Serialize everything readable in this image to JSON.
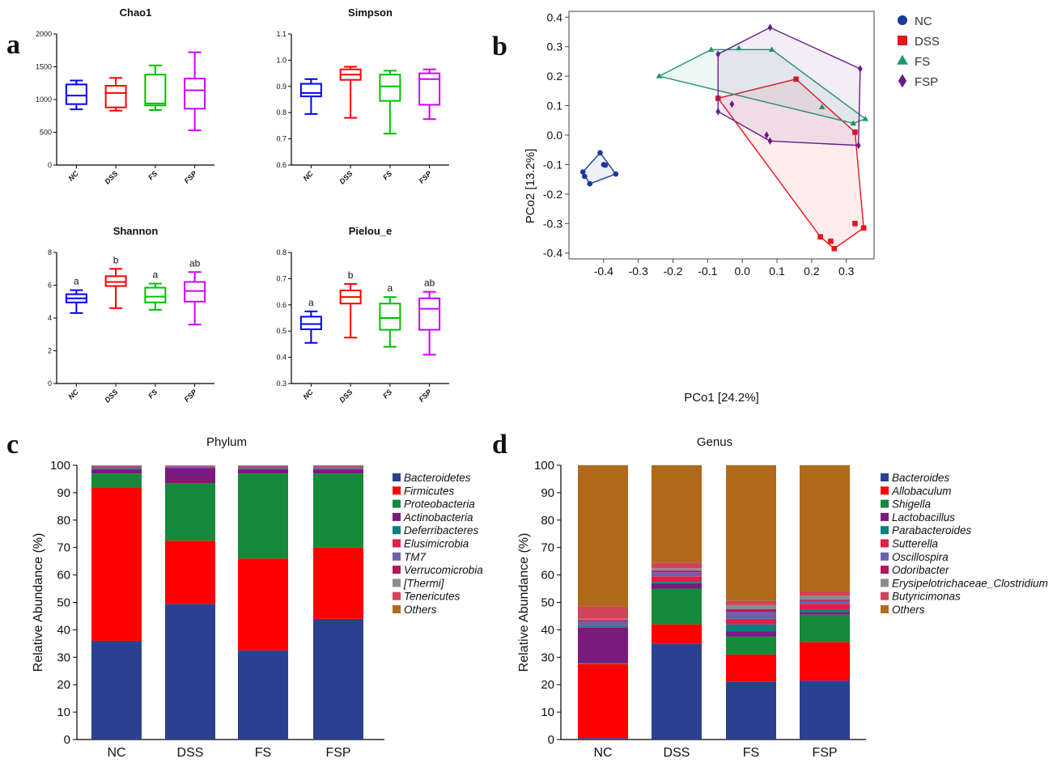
{
  "panel_letters": {
    "a": "a",
    "b": "b",
    "c": "c",
    "d": "d"
  },
  "group_colors": {
    "NC": "#0000ff",
    "DSS": "#ff0000",
    "FS": "#00c000",
    "FSP": "#cc00ff"
  },
  "chart_data": [
    {
      "id": "chao1",
      "type": "box",
      "title": "Chao1",
      "categories": [
        "NC",
        "DSS",
        "FS",
        "FSP"
      ],
      "ylim": [
        0,
        2000
      ],
      "yticks": [
        0,
        500,
        1000,
        1500,
        2000
      ],
      "boxes": [
        {
          "min": 850,
          "q1": 930,
          "median": 1060,
          "q3": 1230,
          "max": 1290
        },
        {
          "min": 830,
          "q1": 880,
          "median": 1100,
          "q3": 1210,
          "max": 1330
        },
        {
          "min": 840,
          "q1": 910,
          "median": 940,
          "q3": 1380,
          "max": 1520
        },
        {
          "min": 530,
          "q1": 860,
          "median": 1140,
          "q3": 1320,
          "max": 1720
        }
      ],
      "sig_labels": []
    },
    {
      "id": "simpson",
      "type": "box",
      "title": "Simpson",
      "categories": [
        "NC",
        "DSS",
        "FS",
        "FSP"
      ],
      "ylim": [
        0.6,
        1.1
      ],
      "yticks": [
        0.6,
        0.7,
        0.8,
        0.9,
        1.0,
        1.1
      ],
      "ytick_labels": [
        "0.6",
        "0.7",
        "0.8",
        "0.9",
        "1.0",
        "1.1"
      ],
      "boxes": [
        {
          "min": 0.795,
          "q1": 0.862,
          "median": 0.875,
          "q3": 0.91,
          "max": 0.928
        },
        {
          "min": 0.78,
          "q1": 0.925,
          "median": 0.945,
          "q3": 0.965,
          "max": 0.975
        },
        {
          "min": 0.72,
          "q1": 0.845,
          "median": 0.9,
          "q3": 0.945,
          "max": 0.96
        },
        {
          "min": 0.775,
          "q1": 0.83,
          "median": 0.928,
          "q3": 0.95,
          "max": 0.965
        }
      ],
      "sig_labels": []
    },
    {
      "id": "shannon",
      "type": "box",
      "title": "Shannon",
      "categories": [
        "NC",
        "DSS",
        "FS",
        "FSP"
      ],
      "ylim": [
        0,
        8
      ],
      "yticks": [
        0,
        2,
        4,
        6,
        8
      ],
      "boxes": [
        {
          "min": 4.3,
          "q1": 4.95,
          "median": 5.2,
          "q3": 5.45,
          "max": 5.7
        },
        {
          "min": 4.6,
          "q1": 5.95,
          "median": 6.2,
          "q3": 6.55,
          "max": 7.0
        },
        {
          "min": 4.5,
          "q1": 4.95,
          "median": 5.3,
          "q3": 5.85,
          "max": 6.1
        },
        {
          "min": 3.6,
          "q1": 5.0,
          "median": 5.65,
          "q3": 6.2,
          "max": 6.8
        }
      ],
      "sig_labels": [
        "a",
        "b",
        "a",
        "ab"
      ]
    },
    {
      "id": "pielou",
      "type": "box",
      "title": "Pielou_e",
      "categories": [
        "NC",
        "DSS",
        "FS",
        "FSP"
      ],
      "ylim": [
        0.3,
        0.8
      ],
      "yticks": [
        0.3,
        0.4,
        0.5,
        0.6,
        0.7,
        0.8
      ],
      "ytick_labels": [
        "0.3",
        "0.4",
        "0.5",
        "0.6",
        "0.7",
        "0.8"
      ],
      "boxes": [
        {
          "min": 0.455,
          "q1": 0.507,
          "median": 0.527,
          "q3": 0.555,
          "max": 0.575
        },
        {
          "min": 0.475,
          "q1": 0.605,
          "median": 0.63,
          "q3": 0.655,
          "max": 0.68
        },
        {
          "min": 0.44,
          "q1": 0.505,
          "median": 0.55,
          "q3": 0.605,
          "max": 0.63
        },
        {
          "min": 0.41,
          "q1": 0.505,
          "median": 0.585,
          "q3": 0.625,
          "max": 0.65
        }
      ],
      "sig_labels": [
        "a",
        "b",
        "a",
        "ab"
      ]
    },
    {
      "id": "pcoa",
      "type": "scatter",
      "xlabel": "PCo1 [24.2%]",
      "ylabel": "PCo2 [13.2%]",
      "xlim": [
        -0.5,
        0.38
      ],
      "ylim": [
        -0.42,
        0.42
      ],
      "xticks": [
        -0.4,
        -0.3,
        -0.2,
        -0.1,
        0.0,
        0.1,
        0.2,
        0.3
      ],
      "xtick_labels": [
        "-0.4",
        "-0.3",
        "-0.2",
        "-0.1",
        "0.0",
        "0.1",
        "0.2",
        "0.3"
      ],
      "yticks": [
        -0.4,
        -0.3,
        -0.2,
        -0.1,
        0.0,
        0.1,
        0.2,
        0.3,
        0.4
      ],
      "ytick_labels": [
        "-0.4",
        "-0.3",
        "-0.2",
        "-0.1",
        "0.0",
        "0.1",
        "0.2",
        "0.3",
        "0.4"
      ],
      "legend": [
        "NC",
        "DSS",
        "FS",
        "FSP"
      ],
      "series": [
        {
          "name": "NC",
          "marker": "circle",
          "color": "#1a3a9c",
          "points": [
            [
              -0.41,
              -0.06
            ],
            [
              -0.46,
              -0.125
            ],
            [
              -0.455,
              -0.14
            ],
            [
              -0.44,
              -0.165
            ],
            [
              -0.4,
              -0.1
            ],
            [
              -0.395,
              -0.102
            ],
            [
              -0.365,
              -0.132
            ]
          ],
          "hull": [
            [
              -0.41,
              -0.06
            ],
            [
              -0.46,
              -0.125
            ],
            [
              -0.44,
              -0.165
            ],
            [
              -0.365,
              -0.132
            ]
          ]
        },
        {
          "name": "DSS",
          "marker": "square",
          "color": "#e8141b",
          "points": [
            [
              -0.07,
              0.125
            ],
            [
              0.155,
              0.19
            ],
            [
              0.325,
              0.01
            ],
            [
              0.325,
              -0.3
            ],
            [
              0.35,
              -0.315
            ],
            [
              0.225,
              -0.345
            ],
            [
              0.255,
              -0.36
            ],
            [
              0.265,
              -0.385
            ]
          ],
          "hull": [
            [
              -0.07,
              0.125
            ],
            [
              0.155,
              0.19
            ],
            [
              0.325,
              0.01
            ],
            [
              0.35,
              -0.315
            ],
            [
              0.265,
              -0.385
            ],
            [
              0.225,
              -0.345
            ]
          ]
        },
        {
          "name": "FS",
          "marker": "triangle",
          "color": "#1f9a6a",
          "points": [
            [
              -0.24,
              0.2
            ],
            [
              -0.09,
              0.29
            ],
            [
              -0.01,
              0.295
            ],
            [
              0.085,
              0.29
            ],
            [
              0.23,
              0.095
            ],
            [
              0.32,
              0.04
            ],
            [
              0.355,
              0.055
            ]
          ],
          "hull": [
            [
              -0.24,
              0.2
            ],
            [
              -0.09,
              0.29
            ],
            [
              0.085,
              0.29
            ],
            [
              0.355,
              0.055
            ],
            [
              0.32,
              0.04
            ]
          ]
        },
        {
          "name": "FSP",
          "marker": "diamond",
          "color": "#6a1a8a",
          "points": [
            [
              0.08,
              0.365
            ],
            [
              0.34,
              0.225
            ],
            [
              -0.07,
              0.275
            ],
            [
              -0.03,
              0.105
            ],
            [
              -0.07,
              0.08
            ],
            [
              0.07,
              0.0
            ],
            [
              0.08,
              -0.02
            ],
            [
              0.335,
              -0.035
            ]
          ],
          "hull": [
            [
              -0.07,
              0.275
            ],
            [
              0.08,
              0.365
            ],
            [
              0.34,
              0.225
            ],
            [
              0.335,
              -0.035
            ],
            [
              0.08,
              -0.02
            ],
            [
              -0.07,
              0.08
            ]
          ]
        }
      ]
    },
    {
      "id": "phylum",
      "type": "stacked-bar",
      "title": "Phylum",
      "ylabel": "Relative Abundance (%)",
      "categories": [
        "NC",
        "DSS",
        "FS",
        "FSP"
      ],
      "ylim": [
        0,
        100
      ],
      "yticks": [
        0,
        10,
        20,
        30,
        40,
        50,
        60,
        70,
        80,
        90,
        100
      ],
      "series": [
        {
          "name": "Bacteroidetes",
          "color": "#2b4190",
          "values": [
            36,
            49.5,
            32.5,
            44
          ]
        },
        {
          "name": "Firmicutes",
          "color": "#ff0000",
          "values": [
            56,
            23,
            33.5,
            26
          ]
        },
        {
          "name": "Proteobacteria",
          "color": "#158a3a",
          "values": [
            5,
            21,
            31,
            27
          ]
        },
        {
          "name": "Actinobacteria",
          "color": "#7a1a7e",
          "values": [
            1.5,
            5.5,
            1.5,
            1.5
          ]
        },
        {
          "name": "Deferribacteres",
          "color": "#0e7f7f",
          "values": [
            0.3,
            0.2,
            0.3,
            0.2
          ]
        },
        {
          "name": "Elusimicrobia",
          "color": "#e21f44",
          "values": [
            0.2,
            0.2,
            0.2,
            0.2
          ]
        },
        {
          "name": "TM7",
          "color": "#6d5fb0",
          "values": [
            0.5,
            0.2,
            0.5,
            0.5
          ]
        },
        {
          "name": "Verrucomicrobia",
          "color": "#b3185a",
          "values": [
            0.2,
            0.1,
            0.2,
            0.2
          ]
        },
        {
          "name": "[Thermi]",
          "color": "#8c8c8c",
          "values": [
            0.1,
            0.1,
            0.1,
            0.1
          ]
        },
        {
          "name": "Tenericutes",
          "color": "#d2435b",
          "values": [
            0.1,
            0.1,
            0.1,
            0.1
          ]
        },
        {
          "name": "Others",
          "color": "#b06a1a",
          "values": [
            0.1,
            0.1,
            0.1,
            0.2
          ]
        }
      ]
    },
    {
      "id": "genus",
      "type": "stacked-bar",
      "title": "Genus",
      "ylabel": "Relative Abundance (%)",
      "categories": [
        "NC",
        "DSS",
        "FS",
        "FSP"
      ],
      "ylim": [
        0,
        100
      ],
      "yticks": [
        0,
        10,
        20,
        30,
        40,
        50,
        60,
        70,
        80,
        90,
        100
      ],
      "series": [
        {
          "name": "Bacteroides",
          "color": "#2b4190",
          "values": [
            0.5,
            35,
            21,
            21.5
          ]
        },
        {
          "name": "Allobaculum",
          "color": "#ff0000",
          "values": [
            27,
            7,
            10,
            14
          ]
        },
        {
          "name": "Shigella",
          "color": "#158a3a",
          "values": [
            0.3,
            13,
            6.5,
            10
          ]
        },
        {
          "name": "Lactobacillus",
          "color": "#7a1a7e",
          "values": [
            13,
            2,
            2,
            1
          ]
        },
        {
          "name": "Parabacteroides",
          "color": "#0e7f7f",
          "values": [
            0.5,
            0.5,
            2.5,
            1
          ]
        },
        {
          "name": "Sutterella",
          "color": "#e21f44",
          "values": [
            0.2,
            2,
            2,
            2
          ]
        },
        {
          "name": "Oscillospira",
          "color": "#6d5fb0",
          "values": [
            1.5,
            1.5,
            2.5,
            1
          ]
        },
        {
          "name": "Odoribacter",
          "color": "#b3185a",
          "values": [
            0.5,
            0.5,
            1,
            0.5
          ]
        },
        {
          "name": "Erysipelotrichaceae_Clostridium",
          "color": "#8c8c8c",
          "values": [
            0.5,
            1,
            1.5,
            1.5
          ]
        },
        {
          "name": "Butyricimonas",
          "color": "#d2435b",
          "values": [
            4.5,
            2,
            1.5,
            1.5
          ]
        },
        {
          "name": "Others",
          "color": "#b06a1a",
          "values": [
            51.5,
            35.5,
            49.5,
            46
          ]
        }
      ]
    }
  ]
}
